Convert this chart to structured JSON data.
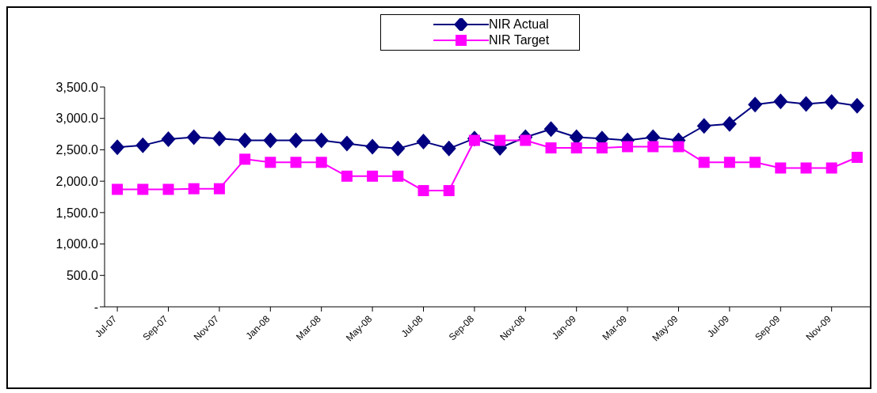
{
  "chart_data": {
    "type": "line",
    "categories": [
      "Jul-07",
      null,
      "Sep-07",
      null,
      "Nov-07",
      null,
      "Jan-08",
      null,
      "Mar-08",
      null,
      "May-08",
      null,
      "Jul-08",
      null,
      "Sep-08",
      null,
      "Nov-08",
      null,
      "Jan-09",
      null,
      "Mar-09",
      null,
      "May-09",
      null,
      "Jul-09",
      null,
      "Sep-09",
      null,
      "Nov-09",
      null
    ],
    "series": [
      {
        "name": "NIR Actual",
        "color": "#000080",
        "marker": "diamond",
        "values": [
          2540,
          2570,
          2670,
          2700,
          2680,
          2650,
          2650,
          2650,
          2650,
          2600,
          2550,
          2520,
          2630,
          2520,
          2680,
          2530,
          2700,
          2830,
          2700,
          2680,
          2650,
          2700,
          2650,
          2880,
          2910,
          3220,
          3270,
          3230,
          3260,
          3200
        ]
      },
      {
        "name": "NIR Target",
        "color": "#ff00ff",
        "marker": "square",
        "values": [
          1870,
          1870,
          1870,
          1880,
          1880,
          2350,
          2300,
          2300,
          2300,
          2080,
          2080,
          2080,
          1850,
          1850,
          2650,
          2650,
          2650,
          2530,
          2530,
          2530,
          2550,
          2550,
          2550,
          2300,
          2300,
          2300,
          2210,
          2210,
          2210,
          2380
        ]
      }
    ],
    "ylim": [
      0,
      3500
    ],
    "yticks": [
      {
        "value": 0,
        "label": "-"
      },
      {
        "value": 500,
        "label": "500.0"
      },
      {
        "value": 1000,
        "label": "1,000.0"
      },
      {
        "value": 1500,
        "label": "1,500.0"
      },
      {
        "value": 2000,
        "label": "2,000.0"
      },
      {
        "value": 2500,
        "label": "2,500.0"
      },
      {
        "value": 3000,
        "label": "3,000.0"
      },
      {
        "value": 3500,
        "label": "3,500.0"
      }
    ],
    "grid": false,
    "legend": "top",
    "line_style": "solid"
  }
}
